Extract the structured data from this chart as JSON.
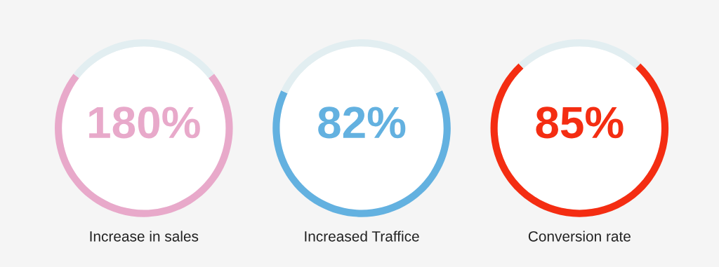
{
  "chart_data": [
    {
      "type": "donut",
      "categories": [
        null,
        null
      ],
      "values": [
        71,
        29
      ],
      "colors": [
        "#e8a9ca",
        "#e2eef1"
      ],
      "annotations": [
        "180%"
      ],
      "title": "Increase in sales"
    },
    {
      "type": "donut",
      "categories": [
        null,
        null
      ],
      "values": [
        64,
        36
      ],
      "colors": [
        "#63b1e0",
        "#e2eef1"
      ],
      "annotations": [
        "82%"
      ],
      "title": "Increased Traffice"
    },
    {
      "type": "donut",
      "categories": [
        null,
        null
      ],
      "values": [
        76,
        24
      ],
      "colors": [
        "#f42d12",
        "#e2eef1"
      ],
      "annotations": [
        "85%"
      ],
      "title": "Conversion rate"
    }
  ]
}
